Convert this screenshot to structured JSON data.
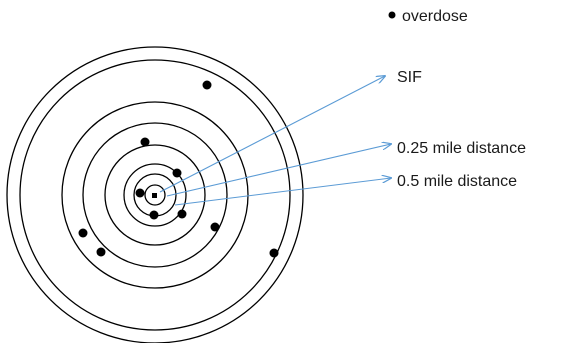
{
  "legend": {
    "symbol": "●",
    "label": "overdose",
    "symbol_name": "black-dot-icon"
  },
  "labels": {
    "sif": "SIF",
    "quarter_mile": "0.25 mile distance",
    "half_mile": "0.5 mile distance"
  },
  "colors": {
    "ring": "#000000",
    "dot": "#000000",
    "arrow": "#5b9bd5",
    "text": "#1a1a1a",
    "background": "#ffffff"
  },
  "diagram": {
    "ring_count": 7,
    "overdose_count": 10,
    "center_marker": "small-square"
  }
}
